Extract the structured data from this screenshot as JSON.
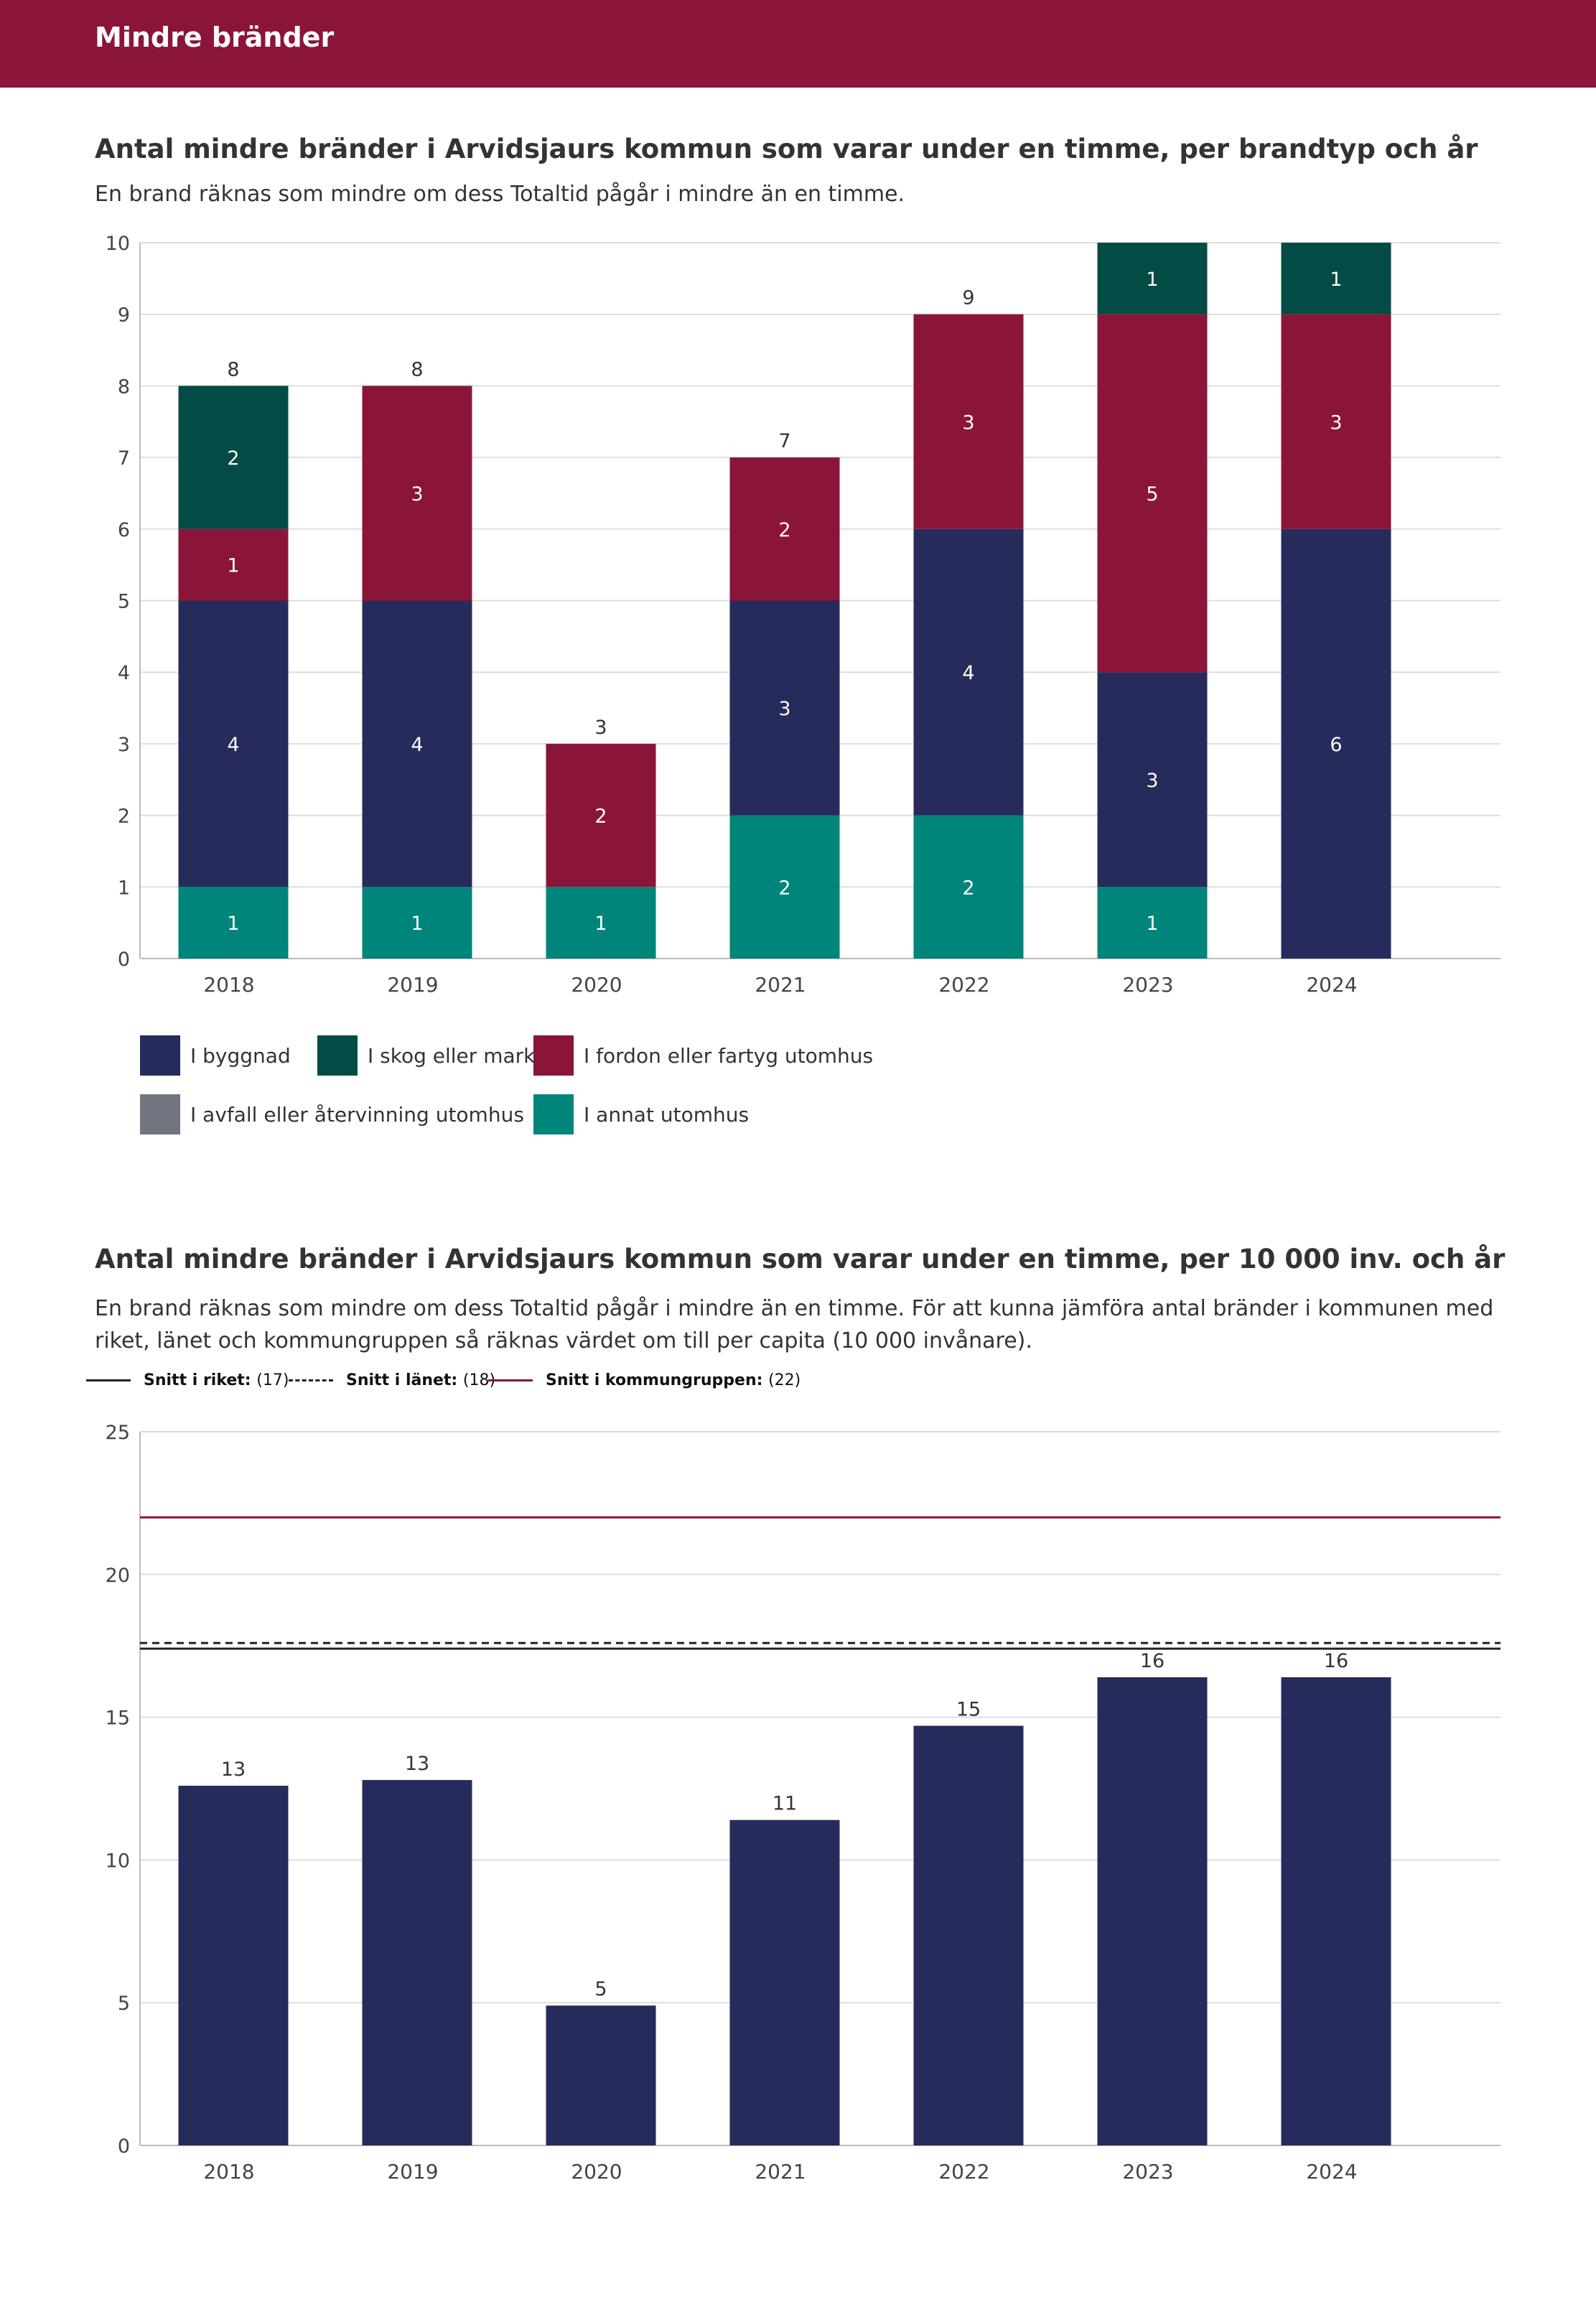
{
  "header": {
    "title": "Mindre bränder"
  },
  "chart1": {
    "title": "Antal mindre bränder i Arvidsjaurs kommun som varar under en timme, per brandtyp och år",
    "subtitle": "En brand räknas som mindre om dess Totaltid pågår i mindre än en timme."
  },
  "chart2": {
    "title": "Antal mindre bränder i Arvidsjaurs kommun som varar under en timme, per 10 000 inv. och år",
    "subtitle": "En brand räknas som mindre om dess Totaltid pågår i mindre än en timme. För att kunna jämföra antal bränder i kommunen med riket, länet och kommungruppen så räknas värdet om till per capita (10 000 invånare)."
  },
  "colors": {
    "header": "#8b1538",
    "byggnad": "#262b5c",
    "skog": "#034b45",
    "fordon": "#8b1538",
    "avfall": "#707580",
    "annat": "#00857a",
    "kommungrupp": "#8b1538"
  },
  "chart_data": [
    {
      "type": "bar",
      "stacked": true,
      "categories": [
        "2018",
        "2019",
        "2020",
        "2021",
        "2022",
        "2023",
        "2024"
      ],
      "series": [
        {
          "name": "I annat utomhus",
          "key": "annat",
          "values": [
            1,
            1,
            1,
            2,
            2,
            1,
            0
          ]
        },
        {
          "name": "I byggnad",
          "key": "byggnad",
          "values": [
            4,
            4,
            0,
            3,
            4,
            3,
            6
          ]
        },
        {
          "name": "I fordon eller fartyg utomhus",
          "key": "fordon",
          "values": [
            1,
            3,
            2,
            2,
            3,
            5,
            3
          ]
        },
        {
          "name": "I skog eller mark",
          "key": "skog",
          "values": [
            2,
            0,
            0,
            0,
            0,
            1,
            1
          ]
        },
        {
          "name": "I avfall eller återvinning utomhus",
          "key": "avfall",
          "values": [
            0,
            0,
            0,
            0,
            0,
            0,
            0
          ]
        }
      ],
      "totals": [
        8,
        8,
        3,
        7,
        9,
        10,
        10
      ],
      "total_labels": [
        "8",
        "8",
        "3",
        "7",
        "9",
        "",
        ""
      ],
      "legend": [
        {
          "name": "I byggnad",
          "key": "byggnad"
        },
        {
          "name": "I skog eller mark",
          "key": "skog"
        },
        {
          "name": "I fordon eller fartyg utomhus",
          "key": "fordon"
        },
        {
          "name": "I avfall eller återvinning utomhus",
          "key": "avfall"
        },
        {
          "name": "I annat utomhus",
          "key": "annat"
        }
      ],
      "ylim": [
        0,
        10
      ],
      "yticks": [
        0,
        1,
        2,
        3,
        4,
        5,
        6,
        7,
        8,
        9,
        10
      ],
      "grid": true
    },
    {
      "type": "bar",
      "categories": [
        "2018",
        "2019",
        "2020",
        "2021",
        "2022",
        "2023",
        "2024"
      ],
      "values": [
        12.6,
        12.8,
        4.9,
        11.4,
        14.7,
        16.4,
        16.4
      ],
      "labels": [
        "13",
        "13",
        "5",
        "11",
        "15",
        "16",
        "16"
      ],
      "ylim": [
        0,
        25
      ],
      "yticks": [
        0,
        5,
        10,
        15,
        20,
        25
      ],
      "grid": true,
      "reference_lines": [
        {
          "name": "Snitt i riket:",
          "value_label": "(17)",
          "value": 17.4,
          "style": "solid",
          "color": "#222222"
        },
        {
          "name": "Snitt i länet:",
          "value_label": "(18)",
          "value": 17.6,
          "style": "dashed",
          "color": "#222222"
        },
        {
          "name": "Snitt i kommungruppen:",
          "value_label": "(22)",
          "value": 22,
          "style": "solid",
          "color": "#8b1538"
        }
      ]
    }
  ]
}
